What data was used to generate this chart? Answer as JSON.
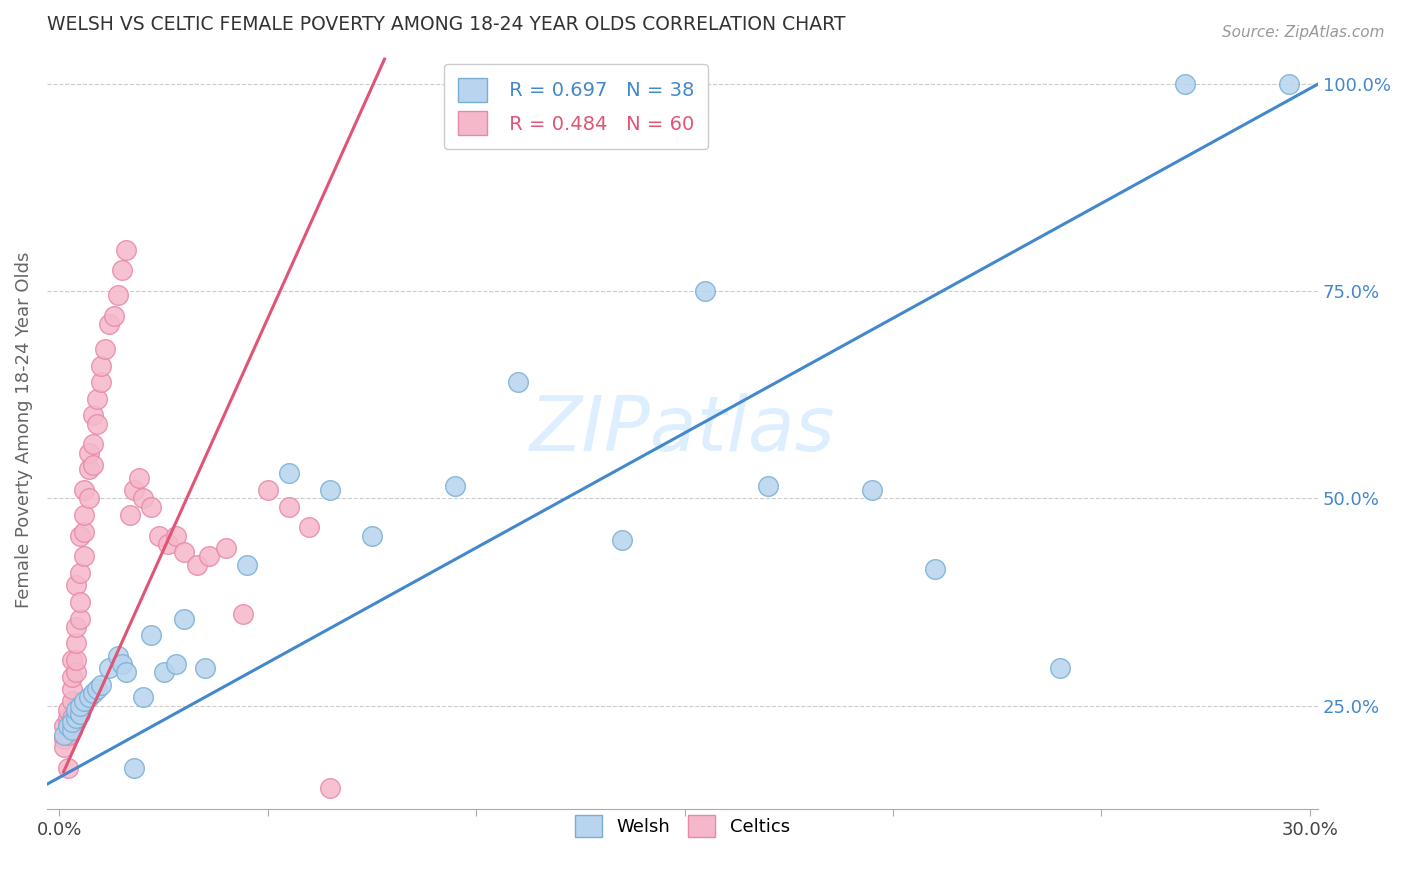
{
  "title": "WELSH VS CELTIC FEMALE POVERTY AMONG 18-24 YEAR OLDS CORRELATION CHART",
  "source": "Source: ZipAtlas.com",
  "ylabel": "Female Poverty Among 18-24 Year Olds",
  "xlim": [
    -0.003,
    0.302
  ],
  "ylim": [
    0.125,
    1.04
  ],
  "xticks": [
    0.0,
    0.05,
    0.1,
    0.15,
    0.2,
    0.25,
    0.3
  ],
  "xticklabels": [
    "0.0%",
    "",
    "",
    "",
    "",
    "",
    "30.0%"
  ],
  "yticks_right": [
    0.25,
    0.5,
    0.75,
    1.0
  ],
  "ytick_right_labels": [
    "25.0%",
    "50.0%",
    "75.0%",
    "100.0%"
  ],
  "welsh_color": "#b8d4ee",
  "celtic_color": "#f5b8cb",
  "welsh_edge": "#7aafd4",
  "celtic_edge": "#e888a8",
  "line_welsh_color": "#4488cc",
  "line_celtic_color": "#e05575",
  "watermark_color": "#ddeeff",
  "welsh_x": [
    0.001,
    0.002,
    0.003,
    0.003,
    0.004,
    0.004,
    0.005,
    0.005,
    0.006,
    0.007,
    0.008,
    0.009,
    0.01,
    0.012,
    0.014,
    0.015,
    0.016,
    0.018,
    0.02,
    0.022,
    0.025,
    0.028,
    0.03,
    0.035,
    0.045,
    0.055,
    0.065,
    0.075,
    0.095,
    0.11,
    0.135,
    0.155,
    0.17,
    0.195,
    0.21,
    0.24,
    0.27,
    0.295
  ],
  "welsh_y": [
    0.215,
    0.225,
    0.22,
    0.23,
    0.235,
    0.245,
    0.24,
    0.25,
    0.255,
    0.26,
    0.265,
    0.27,
    0.275,
    0.295,
    0.31,
    0.3,
    0.29,
    0.175,
    0.26,
    0.335,
    0.29,
    0.3,
    0.355,
    0.295,
    0.42,
    0.53,
    0.51,
    0.455,
    0.515,
    0.64,
    0.45,
    0.75,
    0.515,
    0.51,
    0.415,
    0.295,
    1.0,
    1.0
  ],
  "celtic_x": [
    0.001,
    0.001,
    0.001,
    0.002,
    0.002,
    0.002,
    0.002,
    0.002,
    0.003,
    0.003,
    0.003,
    0.003,
    0.003,
    0.003,
    0.004,
    0.004,
    0.004,
    0.004,
    0.004,
    0.005,
    0.005,
    0.005,
    0.005,
    0.006,
    0.006,
    0.006,
    0.006,
    0.007,
    0.007,
    0.007,
    0.008,
    0.008,
    0.008,
    0.009,
    0.009,
    0.01,
    0.01,
    0.011,
    0.012,
    0.013,
    0.014,
    0.015,
    0.016,
    0.017,
    0.018,
    0.019,
    0.02,
    0.022,
    0.024,
    0.026,
    0.028,
    0.03,
    0.033,
    0.036,
    0.04,
    0.044,
    0.05,
    0.055,
    0.06,
    0.065
  ],
  "celtic_y": [
    0.21,
    0.225,
    0.2,
    0.215,
    0.225,
    0.235,
    0.245,
    0.175,
    0.22,
    0.235,
    0.255,
    0.27,
    0.285,
    0.305,
    0.29,
    0.305,
    0.325,
    0.345,
    0.395,
    0.355,
    0.375,
    0.41,
    0.455,
    0.43,
    0.46,
    0.48,
    0.51,
    0.5,
    0.535,
    0.555,
    0.54,
    0.565,
    0.6,
    0.59,
    0.62,
    0.64,
    0.66,
    0.68,
    0.71,
    0.72,
    0.745,
    0.775,
    0.8,
    0.48,
    0.51,
    0.525,
    0.5,
    0.49,
    0.455,
    0.445,
    0.455,
    0.435,
    0.42,
    0.43,
    0.44,
    0.36,
    0.51,
    0.49,
    0.465,
    0.15
  ],
  "welsh_line_x0": -0.003,
  "welsh_line_x1": 0.302,
  "welsh_line_y0": 0.155,
  "welsh_line_y1": 1.0,
  "celtic_line_x0": 0.001,
  "celtic_line_x1": 0.078,
  "celtic_line_y0": 0.17,
  "celtic_line_y1": 1.03
}
